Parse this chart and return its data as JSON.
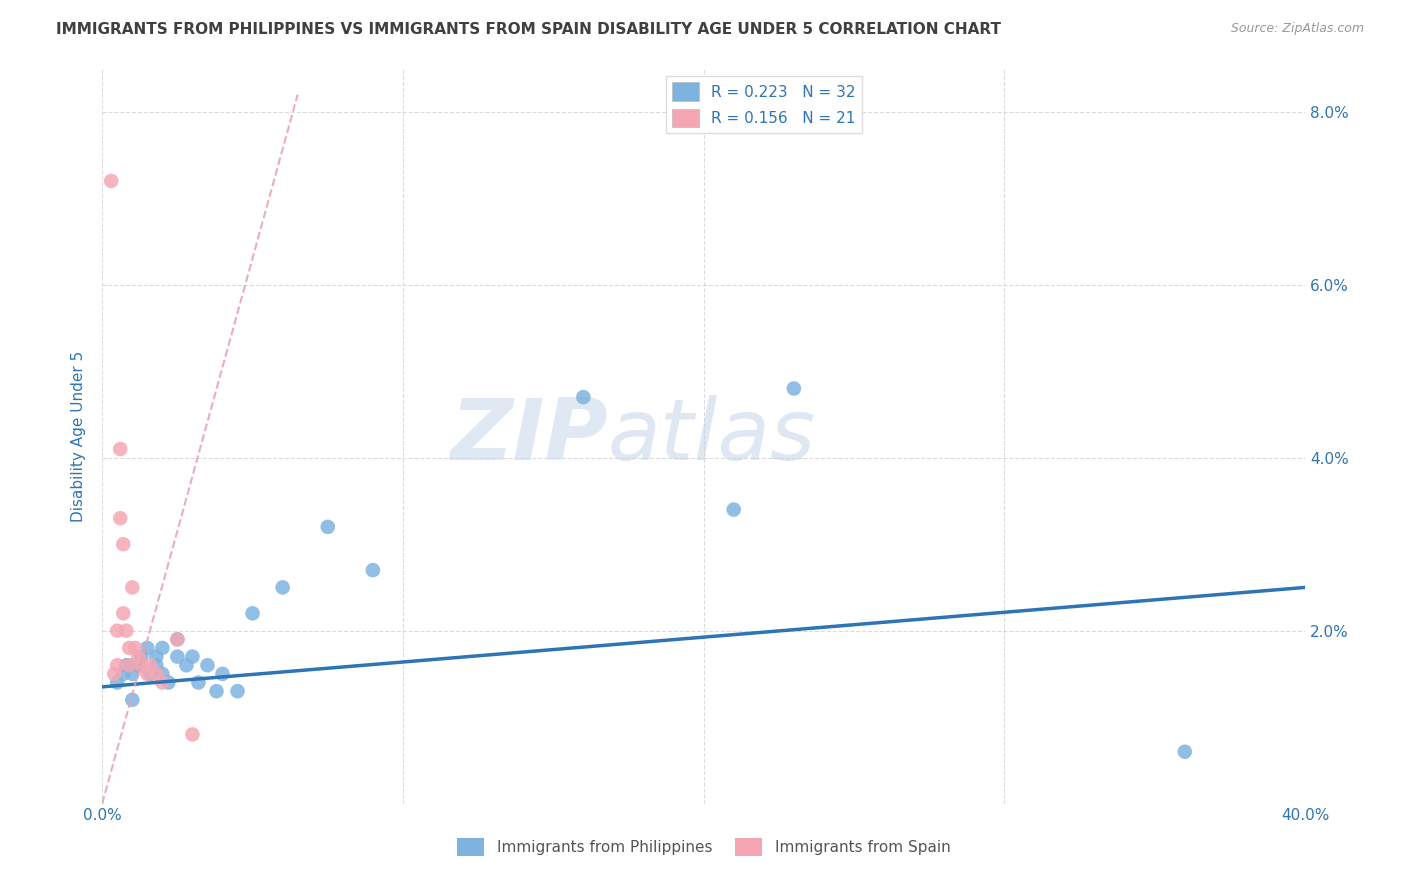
{
  "title": "IMMIGRANTS FROM PHILIPPINES VS IMMIGRANTS FROM SPAIN DISABILITY AGE UNDER 5 CORRELATION CHART",
  "source": "Source: ZipAtlas.com",
  "ylabel": "Disability Age Under 5",
  "xlim": [
    0.0,
    0.4
  ],
  "ylim": [
    0.0,
    0.085
  ],
  "xticks": [
    0.0,
    0.1,
    0.2,
    0.3,
    0.4
  ],
  "xticklabels": [
    "0.0%",
    "",
    "",
    "",
    "40.0%"
  ],
  "yticks": [
    0.0,
    0.02,
    0.04,
    0.06,
    0.08
  ],
  "yticklabels_right": [
    "",
    "2.0%",
    "4.0%",
    "6.0%",
    "8.0%"
  ],
  "philippines_x": [
    0.005,
    0.007,
    0.008,
    0.009,
    0.01,
    0.01,
    0.012,
    0.013,
    0.015,
    0.016,
    0.018,
    0.018,
    0.02,
    0.02,
    0.022,
    0.025,
    0.025,
    0.028,
    0.03,
    0.032,
    0.035,
    0.038,
    0.04,
    0.045,
    0.05,
    0.06,
    0.075,
    0.09,
    0.16,
    0.21,
    0.23,
    0.36
  ],
  "philippines_y": [
    0.014,
    0.015,
    0.016,
    0.016,
    0.015,
    0.012,
    0.016,
    0.017,
    0.018,
    0.015,
    0.017,
    0.016,
    0.018,
    0.015,
    0.014,
    0.019,
    0.017,
    0.016,
    0.017,
    0.014,
    0.016,
    0.013,
    0.015,
    0.013,
    0.022,
    0.025,
    0.032,
    0.027,
    0.047,
    0.034,
    0.048,
    0.006
  ],
  "spain_x": [
    0.003,
    0.004,
    0.005,
    0.005,
    0.006,
    0.006,
    0.007,
    0.007,
    0.008,
    0.009,
    0.009,
    0.01,
    0.011,
    0.012,
    0.013,
    0.015,
    0.016,
    0.018,
    0.02,
    0.025,
    0.03
  ],
  "spain_y": [
    0.072,
    0.015,
    0.02,
    0.016,
    0.041,
    0.033,
    0.03,
    0.022,
    0.02,
    0.018,
    0.016,
    0.025,
    0.018,
    0.017,
    0.016,
    0.015,
    0.016,
    0.015,
    0.014,
    0.019,
    0.008
  ],
  "philippines_color": "#7eb3e0",
  "spain_color": "#f4a7b3",
  "philippines_line_color": "#2e75b6",
  "spain_line_color": "#e8a0aa",
  "philippines_R": 0.223,
  "philippines_N": 32,
  "spain_R": 0.156,
  "spain_N": 21,
  "legend_label_philippines": "Immigrants from Philippines",
  "legend_label_spain": "Immigrants from Spain",
  "watermark_zip": "ZIP",
  "watermark_atlas": "atlas",
  "background_color": "#ffffff",
  "grid_color": "#cccccc",
  "title_color": "#404040",
  "axis_label_color": "#2e75b6",
  "tick_color": "#2e75b6",
  "phil_line_start_y": 0.0135,
  "phil_line_end_y": 0.025,
  "spain_line_start_x": 0.0,
  "spain_line_start_y": 0.0,
  "spain_line_end_x": 0.065,
  "spain_line_end_y": 0.082
}
